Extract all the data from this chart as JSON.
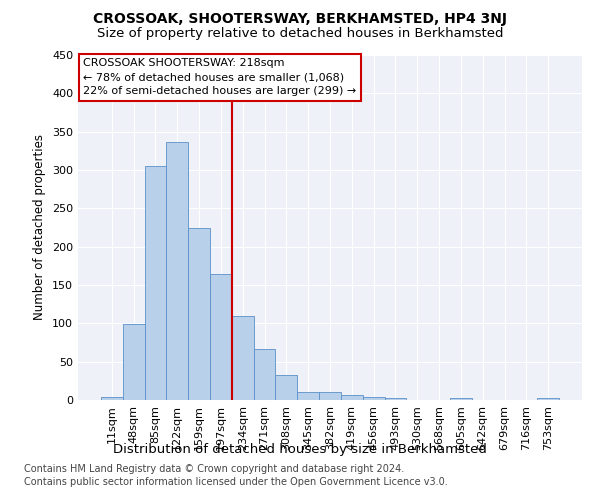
{
  "title": "CROSSOAK, SHOOTERSWAY, BERKHAMSTED, HP4 3NJ",
  "subtitle": "Size of property relative to detached houses in Berkhamsted",
  "xlabel": "Distribution of detached houses by size in Berkhamsted",
  "ylabel": "Number of detached properties",
  "footnote1": "Contains HM Land Registry data © Crown copyright and database right 2024.",
  "footnote2": "Contains public sector information licensed under the Open Government Licence v3.0.",
  "categories": [
    "11sqm",
    "48sqm",
    "85sqm",
    "122sqm",
    "159sqm",
    "197sqm",
    "234sqm",
    "271sqm",
    "308sqm",
    "345sqm",
    "382sqm",
    "419sqm",
    "456sqm",
    "493sqm",
    "530sqm",
    "568sqm",
    "605sqm",
    "642sqm",
    "679sqm",
    "716sqm",
    "753sqm"
  ],
  "values": [
    4,
    99,
    305,
    337,
    225,
    165,
    109,
    66,
    32,
    11,
    10,
    7,
    4,
    2,
    0,
    0,
    3,
    0,
    0,
    0,
    2
  ],
  "bar_color": "#b8d0ea",
  "bar_edge_color": "#5b8fc8",
  "annotation_box_text": "CROSSOAK SHOOTERSWAY: 218sqm\n← 78% of detached houses are smaller (1,068)\n22% of semi-detached houses are larger (299) →",
  "vline_color": "#cc0000",
  "vline_x_index": 6.0,
  "ylim": [
    0,
    450
  ],
  "yticks": [
    0,
    50,
    100,
    150,
    200,
    250,
    300,
    350,
    400,
    450
  ],
  "background_color": "#ffffff",
  "plot_bg_color": "#eef2f8",
  "grid_color": "#ffffff",
  "title_fontsize": 10,
  "subtitle_fontsize": 9.5,
  "xlabel_fontsize": 9.5,
  "ylabel_fontsize": 8.5,
  "tick_fontsize": 8,
  "annotation_fontsize": 8,
  "footnote_fontsize": 7
}
